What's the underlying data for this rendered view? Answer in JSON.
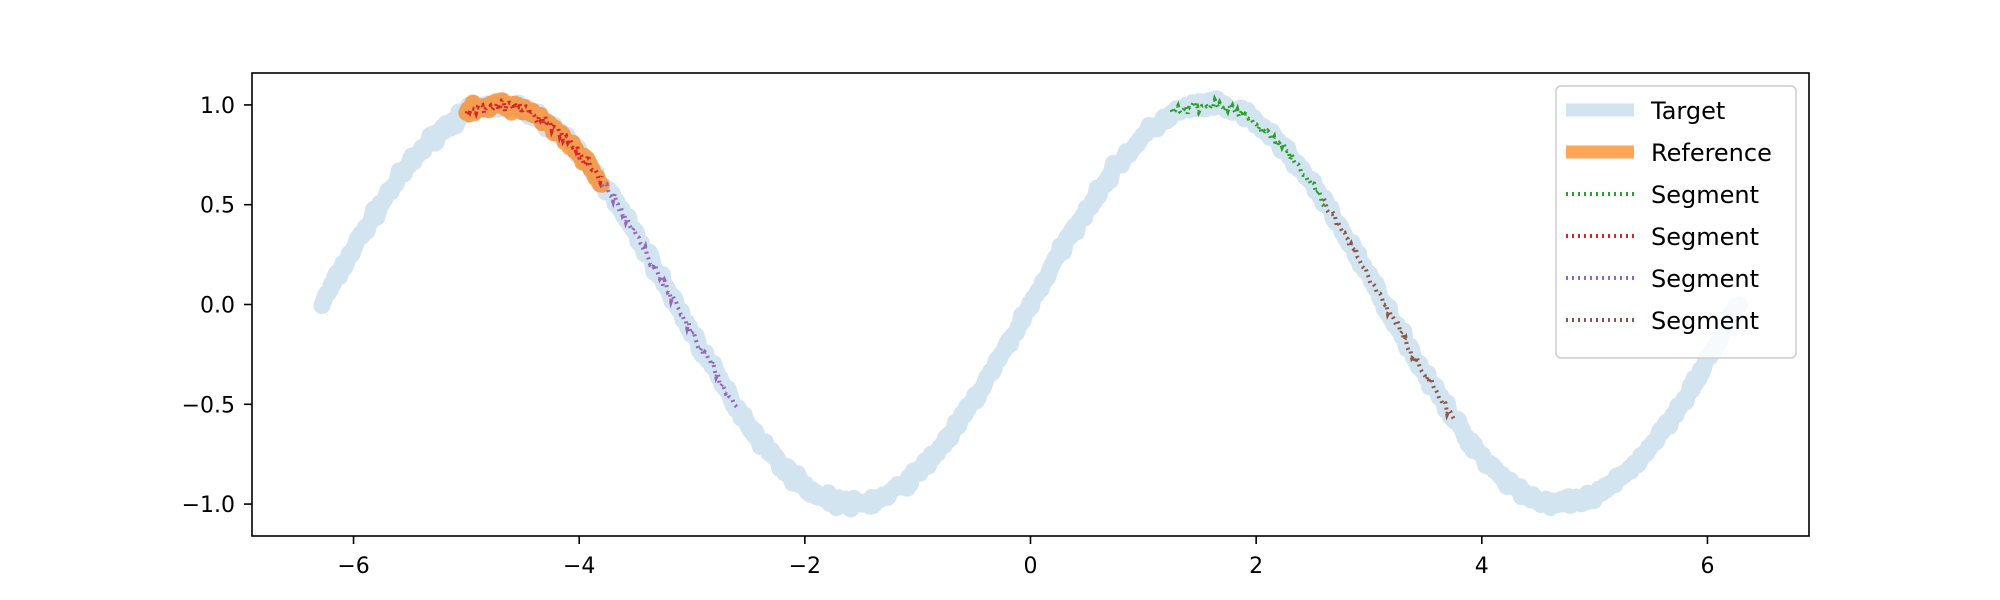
{
  "chart_data": {
    "type": "line",
    "title": "",
    "xlabel": "",
    "ylabel": "",
    "xlim": [
      -6.9,
      6.9
    ],
    "ylim": [
      -1.16,
      1.16
    ],
    "xticks": [
      -6,
      -4,
      -2,
      0,
      2,
      4,
      6
    ],
    "yticks": [
      -1.0,
      -0.5,
      0.0,
      0.5,
      1.0
    ],
    "xtick_labels": [
      "−6",
      "−4",
      "−2",
      "0",
      "2",
      "4",
      "6"
    ],
    "ytick_labels": [
      "−1.0",
      "−0.5",
      "0.0",
      "0.5",
      "1.0"
    ],
    "grid": false,
    "legend_position": "top-right",
    "noise_amplitude": 0.02,
    "series": [
      {
        "name": "Target",
        "function": "sin(x)",
        "x_range": [
          -6.28,
          6.28
        ],
        "color": "#1f77b4",
        "opacity": 0.2,
        "style": "solid-thick"
      },
      {
        "name": "Reference",
        "function": "sin(x)",
        "x_range": [
          -5.0,
          -3.8
        ],
        "color": "#ff7f0e",
        "opacity": 0.7,
        "style": "solid-thick"
      },
      {
        "name": "Segment",
        "function": "sin(x)",
        "x_range": [
          1.25,
          2.6
        ],
        "color": "#2ca02c",
        "style": "dotted"
      },
      {
        "name": "Segment",
        "function": "sin(x)",
        "x_range": [
          -5.0,
          -3.8
        ],
        "color": "#d62728",
        "style": "dotted"
      },
      {
        "name": "Segment",
        "function": "sin(x)",
        "x_range": [
          -3.8,
          -2.6
        ],
        "color": "#9467bd",
        "style": "dotted"
      },
      {
        "name": "Segment",
        "function": "sin(x)",
        "x_range": [
          2.6,
          3.75
        ],
        "color": "#8c564b",
        "style": "dotted"
      }
    ]
  }
}
